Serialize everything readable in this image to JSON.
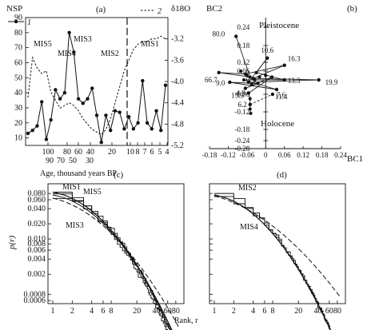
{
  "chart_data": [
    {
      "type": "line",
      "panel": "(a)",
      "ylabel_left": "NSP",
      "ylabel_right": "δ18O",
      "xlabel": "Age, thousand years BP",
      "yticks_left": [
        10,
        20,
        30,
        40,
        50,
        60,
        70,
        80,
        90
      ],
      "yticks_right": [
        "-3.2",
        "-3.6",
        "-4.0",
        "-4.4",
        "-4.8",
        "-5.2"
      ],
      "ylim_left": [
        5,
        90
      ],
      "ylim_right": [
        -5.2,
        -2.8
      ],
      "xticks_left_top": [
        "100",
        "80",
        "60",
        "40",
        "20"
      ],
      "xticks_left_bottom": [
        "90",
        "70",
        "50",
        "30"
      ],
      "xticks_right": [
        "10",
        "8",
        "7",
        "6",
        "5",
        "4"
      ],
      "break_label": "MIS2",
      "mis_labels": [
        "MIS5",
        "MIS4",
        "MIS3",
        "MIS2",
        "MIS1"
      ],
      "legend": [
        {
          "key": "1",
          "style": "solid-dot"
        },
        {
          "key": "2",
          "style": "dashed"
        }
      ],
      "series": [
        {
          "name": "1",
          "style": "solid-dot",
          "points": [
            [
              0,
              13
            ],
            [
              1,
              15
            ],
            [
              2,
              18
            ],
            [
              3,
              34
            ],
            [
              4,
              9
            ],
            [
              5,
              22
            ],
            [
              6,
              42
            ],
            [
              7,
              36
            ],
            [
              8,
              40
            ],
            [
              9,
              80
            ],
            [
              10,
              67
            ],
            [
              11,
              36
            ],
            [
              12,
              33
            ],
            [
              13,
              36
            ],
            [
              14,
              43
            ],
            [
              15,
              25
            ],
            [
              16,
              7
            ],
            [
              17,
              25
            ],
            [
              18,
              15
            ],
            [
              19,
              28
            ],
            [
              20,
              27
            ],
            [
              21,
              16
            ],
            [
              22,
              24
            ],
            [
              23,
              16
            ],
            [
              24,
              20
            ],
            [
              25,
              48
            ],
            [
              26,
              20
            ],
            [
              27,
              16
            ],
            [
              28,
              28
            ],
            [
              29,
              15
            ],
            [
              30,
              45
            ]
          ]
        },
        {
          "name": "2",
          "style": "dashed",
          "points": [
            [
              0,
              -4.3
            ],
            [
              1,
              -3.55
            ],
            [
              2,
              -3.75
            ],
            [
              3,
              -3.85
            ],
            [
              4,
              -3.8
            ],
            [
              5,
              -4.2
            ],
            [
              6,
              -4.35
            ],
            [
              7,
              -4.5
            ],
            [
              8,
              -4.45
            ],
            [
              9,
              -4.4
            ],
            [
              10,
              -4.45
            ],
            [
              11,
              -4.55
            ],
            [
              12,
              -4.7
            ],
            [
              13,
              -4.8
            ],
            [
              14,
              -4.9
            ],
            [
              15,
              -4.95
            ],
            [
              16,
              -5.0
            ],
            [
              17,
              -4.9
            ],
            [
              18,
              -4.7
            ],
            [
              19,
              -4.4
            ],
            [
              20,
              -4.1
            ],
            [
              21,
              -3.8
            ],
            [
              22,
              -3.6
            ],
            [
              23,
              -3.4
            ],
            [
              24,
              -3.3
            ],
            [
              25,
              -3.25
            ],
            [
              26,
              -3.25
            ],
            [
              27,
              -3.2
            ],
            [
              28,
              -3.2
            ],
            [
              29,
              -3.15
            ],
            [
              30,
              -3.2
            ]
          ]
        }
      ]
    },
    {
      "type": "scatter",
      "panel": "(b)",
      "xlabel": "BC1",
      "ylabel": "BC2",
      "xlim": [
        -0.18,
        0.24
      ],
      "ylim": [
        -0.28,
        0.28
      ],
      "xticks": [
        "-0.18",
        "-0.12",
        "-0.06",
        "0",
        "0.06",
        "0.12",
        "0.18",
        "0.24"
      ],
      "yticks": [
        "0.24",
        "0.18",
        "0.12",
        "0.06",
        "0",
        "-0.06",
        "-0.12",
        "-0.18",
        "-0.24",
        "-0.28"
      ],
      "annotations": [
        "Pleistocene",
        "Holocene"
      ],
      "labeled_points": [
        {
          "label": "80.0",
          "x": -0.095,
          "y": 0.21
        },
        {
          "label": "10.6",
          "x": 0.005,
          "y": 0.135
        },
        {
          "label": "16.3",
          "x": 0.06,
          "y": 0.1
        },
        {
          "label": "66.7",
          "x": -0.15,
          "y": 0.05
        },
        {
          "label": "9.0",
          "x": -0.115,
          "y": -0.01
        },
        {
          "label": "13.3",
          "x": 0.06,
          "y": 0.0
        },
        {
          "label": "19.9",
          "x": 0.17,
          "y": 0.0
        },
        {
          "label": "15.3",
          "x": -0.065,
          "y": -0.035
        },
        {
          "label": "11.4",
          "x": 0.035,
          "y": -0.04
        },
        {
          "label": "4.9",
          "x": -0.055,
          "y": -0.055
        },
        {
          "label": "7.6",
          "x": 0.022,
          "y": -0.06
        },
        {
          "label": "6.2",
          "x": -0.05,
          "y": -0.095
        }
      ],
      "other_points": [
        [
          -0.08,
          0.06
        ],
        [
          -0.065,
          0.04
        ],
        [
          -0.06,
          0.03
        ],
        [
          -0.05,
          0.02
        ],
        [
          -0.04,
          0.01
        ],
        [
          -0.07,
          0.0
        ],
        [
          -0.03,
          0.05
        ],
        [
          -0.02,
          0.02
        ],
        [
          -0.055,
          -0.01
        ],
        [
          -0.045,
          -0.02
        ],
        [
          -0.035,
          0.0
        ],
        [
          -0.025,
          -0.015
        ],
        [
          0.0,
          0.03
        ],
        [
          0.02,
          0.02
        ],
        [
          -0.05,
          -0.11
        ],
        [
          -0.048,
          -0.125
        ],
        [
          -0.05,
          -0.075
        ]
      ],
      "solid_path": [
        [
          -0.095,
          0.21
        ],
        [
          -0.05,
          0.02
        ],
        [
          -0.15,
          0.05
        ],
        [
          -0.065,
          0.04
        ],
        [
          0.06,
          0.1
        ],
        [
          -0.04,
          0.01
        ],
        [
          0.17,
          0.0
        ],
        [
          -0.055,
          -0.01
        ],
        [
          0.005,
          0.135
        ],
        [
          -0.03,
          0.05
        ],
        [
          0.06,
          0.0
        ],
        [
          -0.07,
          0.0
        ],
        [
          0.035,
          -0.04
        ],
        [
          -0.115,
          -0.01
        ],
        [
          -0.025,
          -0.015
        ],
        [
          -0.065,
          -0.035
        ],
        [
          0.02,
          0.02
        ],
        [
          -0.055,
          -0.055
        ],
        [
          -0.05,
          -0.075
        ],
        [
          -0.05,
          -0.095
        ],
        [
          -0.05,
          -0.11
        ],
        [
          -0.048,
          -0.125
        ]
      ],
      "dashed_path": [
        [
          -0.05,
          -0.095
        ],
        [
          0.022,
          -0.06
        ]
      ]
    },
    {
      "type": "line",
      "panel": "(c)",
      "ylabel": "p(r)",
      "log_y": true,
      "log_x": true,
      "ylim": [
        0.0006,
        0.1
      ],
      "xlim": [
        0.9,
        100
      ],
      "yticks": [
        "0.080",
        "0.060",
        "0.040",
        "0.020",
        "0.010",
        "0.008",
        "0.006",
        "0.004",
        "0.002",
        "0.0008",
        "0.0006"
      ],
      "xticks": [
        "1",
        "2",
        "4",
        "6",
        "8",
        "20",
        "40",
        "60",
        "80"
      ],
      "series_labels": [
        "MIS1",
        "MIS5",
        "MIS3"
      ]
    },
    {
      "type": "line",
      "panel": "(d)",
      "log_y": true,
      "log_x": true,
      "ylim": [
        0.0006,
        0.1
      ],
      "xlim": [
        0.9,
        100
      ],
      "xticks": [
        "1",
        "2",
        "4",
        "6",
        "8",
        "20",
        "40",
        "60",
        "80"
      ],
      "series_labels": [
        "MIS2",
        "MIS4"
      ]
    }
  ],
  "shared_xlabel": "Rank, r"
}
